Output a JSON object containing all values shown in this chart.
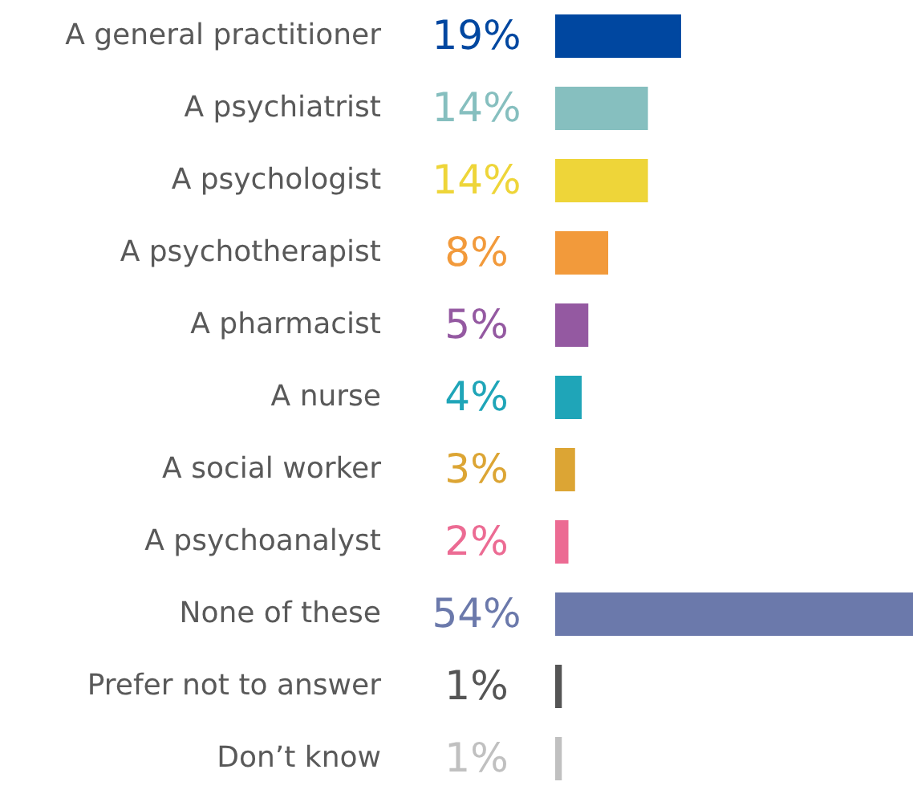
{
  "chart_data": {
    "type": "bar",
    "orientation": "horizontal",
    "categories": [
      "A general practitioner",
      "A psychiatrist",
      "A psychologist",
      "A psychotherapist",
      "A pharmacist",
      "A nurse",
      "A social worker",
      "A psychoanalyst",
      "None of these",
      "Prefer not to answer",
      "Don’t know"
    ],
    "values": [
      19,
      14,
      14,
      8,
      5,
      4,
      3,
      2,
      54,
      1,
      1
    ],
    "value_labels": [
      "19%",
      "14%",
      "14%",
      "8%",
      "5%",
      "4%",
      "3%",
      "2%",
      "54%",
      "1%",
      "1%"
    ],
    "colors": [
      "#0047a0",
      "#86bfbf",
      "#eed539",
      "#f29a3b",
      "#9459a1",
      "#1fa5b8",
      "#dca534",
      "#ec6b93",
      "#6b79ab",
      "#555555",
      "#c0c0c0"
    ]
  }
}
